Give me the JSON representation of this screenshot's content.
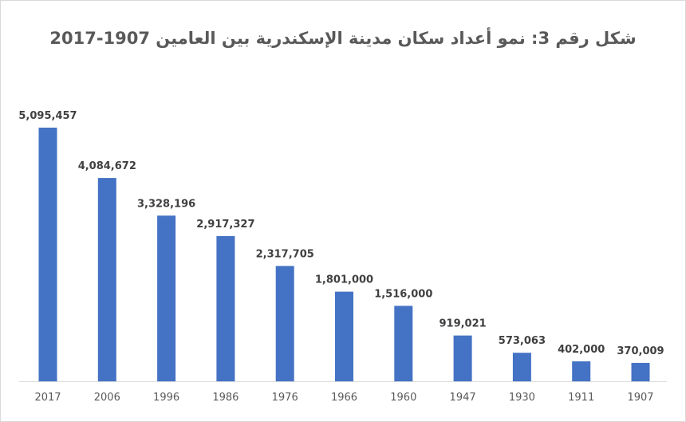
{
  "chart_data": {
    "type": "bar",
    "title": "شكل رقم 3: نمو أعداد سكان مدينة الإسكندرية بين العامين 1907-2017",
    "xlabel": "",
    "ylabel": "",
    "categories": [
      "2017",
      "2006",
      "1996",
      "1986",
      "1976",
      "1966",
      "1960",
      "1947",
      "1930",
      "1911",
      "1907"
    ],
    "values": [
      5095457,
      4084672,
      3328196,
      2917327,
      2317705,
      1801000,
      1516000,
      919021,
      573063,
      402000,
      370009
    ],
    "value_labels": [
      "5,095,457",
      "4,084,672",
      "3,328,196",
      "2,917,327",
      "2,317,705",
      "1,801,000",
      "1,516,000",
      "919,021",
      "573,063",
      "402,000",
      "370,009"
    ],
    "ylim": [
      0,
      5095457
    ],
    "grid": false,
    "legend": "none",
    "bar_color": "#4472c4"
  }
}
